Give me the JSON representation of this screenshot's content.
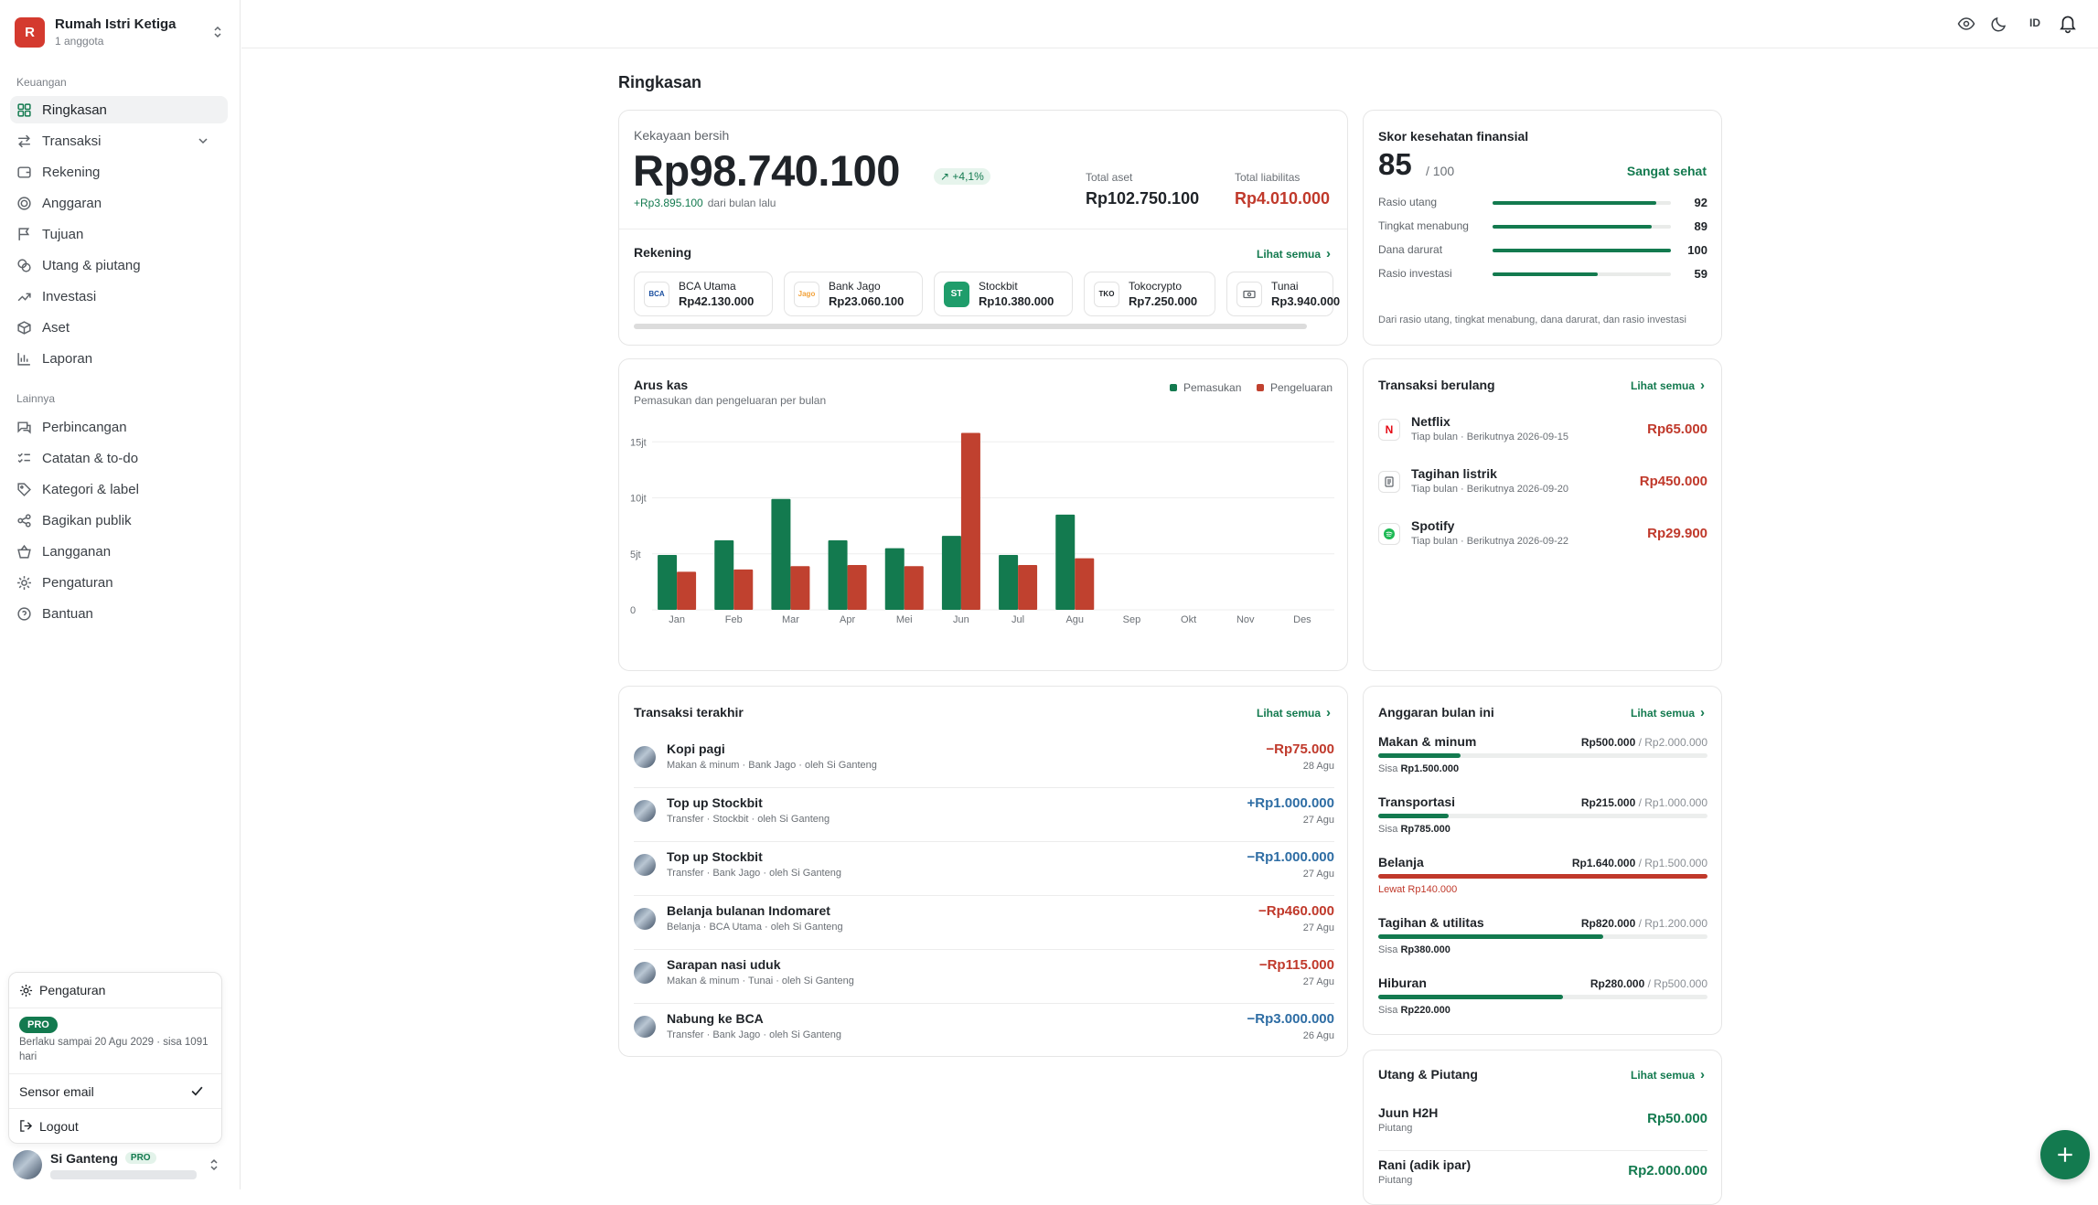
{
  "workspace": {
    "initial": "R",
    "name": "Rumah Istri Ketiga",
    "members": "1 anggota"
  },
  "sidebar": {
    "section1": "Keuangan",
    "items1": [
      {
        "label": "Ringkasan",
        "icon": "grid-icon"
      },
      {
        "label": "Transaksi",
        "icon": "arrows-icon"
      },
      {
        "label": "Rekening",
        "icon": "wallet-icon"
      },
      {
        "label": "Anggaran",
        "icon": "target-icon"
      },
      {
        "label": "Tujuan",
        "icon": "flag-icon"
      },
      {
        "label": "Utang & piutang",
        "icon": "coins-icon"
      },
      {
        "label": "Investasi",
        "icon": "trending-icon"
      },
      {
        "label": "Aset",
        "icon": "box-icon"
      },
      {
        "label": "Laporan",
        "icon": "bar-chart-icon"
      }
    ],
    "section2": "Lainnya",
    "items2": [
      {
        "label": "Perbincangan",
        "icon": "chat-icon"
      },
      {
        "label": "Catatan & to-do",
        "icon": "checklist-icon"
      },
      {
        "label": "Kategori & label",
        "icon": "tag-icon"
      },
      {
        "label": "Bagikan publik",
        "icon": "share-icon"
      },
      {
        "label": "Langganan",
        "icon": "basket-icon"
      },
      {
        "label": "Pengaturan",
        "icon": "gear-icon"
      },
      {
        "label": "Bantuan",
        "icon": "help-icon"
      }
    ]
  },
  "user_menu": {
    "settings": "Pengaturan",
    "plan_badge": "PRO",
    "plan_note": "Berlaku sampai 20 Agu 2029 · sisa 1091 hari",
    "sensor": "Sensor email",
    "logout": "Logout"
  },
  "user": {
    "name": "Si Ganteng",
    "badge": "PRO"
  },
  "topbar": {
    "lang": "ID"
  },
  "page": {
    "title": "Ringkasan"
  },
  "net_worth": {
    "label": "Kekayaan bersih",
    "value": "Rp98.740.100",
    "change": "+4,1%",
    "delta": "+Rp3.895.100",
    "delta_note": "dari bulan lalu",
    "assets_label": "Total aset",
    "assets_value": "Rp102.750.100",
    "liab_label": "Total liabilitas",
    "liab_value": "Rp4.010.000"
  },
  "accounts": {
    "title": "Rekening",
    "see_all": "Lihat semua",
    "items": [
      {
        "name": "BCA Utama",
        "value": "Rp42.130.000",
        "logo": "BCA",
        "color": "#1a4fa0"
      },
      {
        "name": "Bank Jago",
        "value": "Rp23.060.100",
        "logo": "Jago",
        "color": "#f2a23a"
      },
      {
        "name": "Stockbit",
        "value": "Rp10.380.000",
        "logo": "ST",
        "color": "#1f9d6b"
      },
      {
        "name": "Tokocrypto",
        "value": "Rp7.250.000",
        "logo": "TKO",
        "color": "#1f2328"
      },
      {
        "name": "Tunai",
        "value": "Rp3.940.000",
        "logo": "cash-icon",
        "color": "#5f646a"
      }
    ]
  },
  "score": {
    "title": "Skor kesehatan finansial",
    "value": "85",
    "max": "/ 100",
    "status": "Sangat sehat",
    "ratios": [
      {
        "label": "Rasio utang",
        "value": "92",
        "pct": 0.92
      },
      {
        "label": "Tingkat menabung",
        "value": "89",
        "pct": 0.89
      },
      {
        "label": "Dana darurat",
        "value": "100",
        "pct": 1.0
      },
      {
        "label": "Rasio investasi",
        "value": "59",
        "pct": 0.59
      }
    ],
    "note": "Dari rasio utang, tingkat menabung, dana darurat, dan rasio investasi"
  },
  "cashflow": {
    "title": "Arus kas",
    "subtitle": "Pemasukan dan pengeluaran per bulan",
    "legend_in": "Pemasukan",
    "legend_out": "Pengeluaran",
    "color_in": "#137a4f",
    "color_out": "#c0412f"
  },
  "chart_data": {
    "type": "bar",
    "title": "Arus kas",
    "categories": [
      "Jan",
      "Feb",
      "Mar",
      "Apr",
      "Mei",
      "Jun",
      "Jul",
      "Agu",
      "Sep",
      "Okt",
      "Nov",
      "Des"
    ],
    "series": [
      {
        "name": "Pemasukan",
        "values": [
          4.9,
          6.2,
          9.9,
          6.2,
          5.5,
          6.6,
          4.9,
          8.5,
          null,
          null,
          null,
          null
        ]
      },
      {
        "name": "Pengeluaran",
        "values": [
          3.4,
          3.6,
          3.9,
          4.0,
          3.9,
          15.8,
          4.0,
          4.6,
          null,
          null,
          null,
          null
        ]
      }
    ],
    "yticks": [
      "0",
      "5jt",
      "10jt",
      "15jt"
    ],
    "ylim": [
      0,
      16
    ],
    "unit": "jt",
    "grid": true,
    "legend": "top-right"
  },
  "recurring": {
    "title": "Transaksi berulang",
    "see_all": "Lihat semua",
    "items": [
      {
        "name": "Netflix",
        "sub": "Tiap bulan · Berikutnya 2026-09-15",
        "amount": "Rp65.000",
        "logo": "N",
        "color": "#e50914"
      },
      {
        "name": "Tagihan listrik",
        "sub": "Tiap bulan · Berikutnya 2026-09-20",
        "amount": "Rp450.000",
        "logo": "bill-icon",
        "color": "#5f646a"
      },
      {
        "name": "Spotify",
        "sub": "Tiap bulan · Berikutnya 2026-09-22",
        "amount": "Rp29.900",
        "logo": "spotify-icon",
        "color": "#1db954"
      }
    ]
  },
  "transactions": {
    "title": "Transaksi terakhir",
    "see_all": "Lihat semua",
    "items": [
      {
        "name": "Kopi pagi",
        "sub": "Makan & minum · Bank Jago · oleh Si Ganteng",
        "amount": "−Rp75.000",
        "date": "28 Agu",
        "type": "neg"
      },
      {
        "name": "Top up Stockbit",
        "sub": "Transfer · Stockbit · oleh Si Ganteng",
        "amount": "+Rp1.000.000",
        "date": "27 Agu",
        "type": "pos"
      },
      {
        "name": "Top up Stockbit",
        "sub": "Transfer · Bank Jago · oleh Si Ganteng",
        "amount": "−Rp1.000.000",
        "date": "27 Agu",
        "type": "pos"
      },
      {
        "name": "Belanja bulanan Indomaret",
        "sub": "Belanja · BCA Utama · oleh Si Ganteng",
        "amount": "−Rp460.000",
        "date": "27 Agu",
        "type": "neg"
      },
      {
        "name": "Sarapan nasi uduk",
        "sub": "Makan & minum · Tunai · oleh Si Ganteng",
        "amount": "−Rp115.000",
        "date": "27 Agu",
        "type": "neg"
      },
      {
        "name": "Nabung ke BCA",
        "sub": "Transfer · Bank Jago · oleh Si Ganteng",
        "amount": "−Rp3.000.000",
        "date": "26 Agu",
        "type": "pos"
      }
    ]
  },
  "budget": {
    "title": "Anggaran bulan ini",
    "see_all": "Lihat semua",
    "items": [
      {
        "name": "Makan & minum",
        "spent": "Rp500.000",
        "limit": "/ Rp2.000.000",
        "rest_label": "Sisa",
        "rest": "Rp1.500.000",
        "pct": 0.25,
        "over": false
      },
      {
        "name": "Transportasi",
        "spent": "Rp215.000",
        "limit": "/ Rp1.000.000",
        "rest_label": "Sisa",
        "rest": "Rp785.000",
        "pct": 0.215,
        "over": false
      },
      {
        "name": "Belanja",
        "spent": "Rp1.640.000",
        "limit": "/ Rp1.500.000",
        "rest_label": "Lewat",
        "rest": "Rp140.000",
        "pct": 1.0,
        "over": true
      },
      {
        "name": "Tagihan & utilitas",
        "spent": "Rp820.000",
        "limit": "/ Rp1.200.000",
        "rest_label": "Sisa",
        "rest": "Rp380.000",
        "pct": 0.683,
        "over": false
      },
      {
        "name": "Hiburan",
        "spent": "Rp280.000",
        "limit": "/ Rp500.000",
        "rest_label": "Sisa",
        "rest": "Rp220.000",
        "pct": 0.56,
        "over": false
      }
    ]
  },
  "debts": {
    "title": "Utang & Piutang",
    "see_all": "Lihat semua",
    "items": [
      {
        "name": "Juun H2H",
        "sub": "Piutang",
        "amount": "Rp50.000"
      },
      {
        "name": "Rani (adik ipar)",
        "sub": "Piutang",
        "amount": "Rp2.000.000"
      }
    ]
  }
}
